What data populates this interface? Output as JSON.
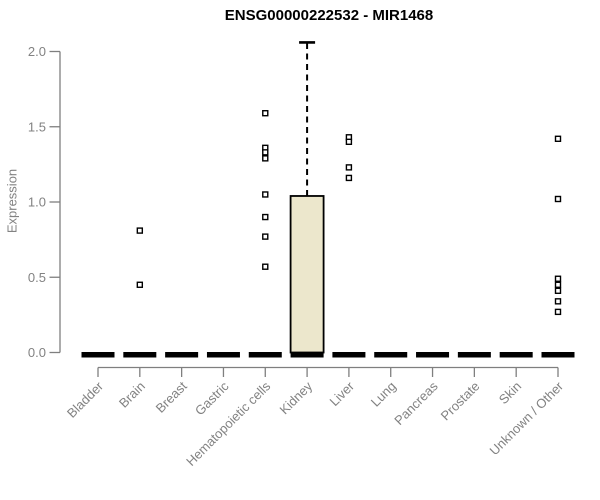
{
  "chart_data": {
    "type": "boxplot",
    "title": "ENSG00000222532 - MIR1468",
    "ylabel": "Expression",
    "xlabel": "",
    "ylim": [
      0,
      2.06
    ],
    "yticks": [
      0.0,
      0.5,
      1.0,
      1.5,
      2.0
    ],
    "ytick_labels": [
      "0.0",
      "0.5",
      "1.0",
      "1.5",
      "2.0"
    ],
    "grid": "off",
    "legend": "none",
    "categories": [
      "Bladder",
      "Brain",
      "Breast",
      "Gastric",
      "Hematopoietic cells",
      "Kidney",
      "Liver",
      "Lung",
      "Pancreas",
      "Prostate",
      "Skin",
      "Unknown / Other"
    ],
    "boxes": [
      {
        "category": "Bladder",
        "median": 0,
        "q1": 0,
        "q3": 0,
        "whisker_low": 0,
        "whisker_high": 0,
        "outliers": []
      },
      {
        "category": "Brain",
        "median": 0,
        "q1": 0,
        "q3": 0,
        "whisker_low": 0,
        "whisker_high": 0,
        "outliers": [
          0.81,
          0.45
        ]
      },
      {
        "category": "Breast",
        "median": 0,
        "q1": 0,
        "q3": 0,
        "whisker_low": 0,
        "whisker_high": 0,
        "outliers": []
      },
      {
        "category": "Gastric",
        "median": 0,
        "q1": 0,
        "q3": 0,
        "whisker_low": 0,
        "whisker_high": 0,
        "outliers": []
      },
      {
        "category": "Hematopoietic cells",
        "median": 0,
        "q1": 0,
        "q3": 0,
        "whisker_low": 0,
        "whisker_high": 0,
        "outliers": [
          1.59,
          1.36,
          1.33,
          1.29,
          1.05,
          0.9,
          0.77,
          0.57
        ]
      },
      {
        "category": "Kidney",
        "median": 0,
        "q1": 0,
        "q3": 1.04,
        "whisker_low": 0,
        "whisker_high": 2.06,
        "outliers": []
      },
      {
        "category": "Liver",
        "median": 0,
        "q1": 0,
        "q3": 0,
        "whisker_low": 0,
        "whisker_high": 0,
        "outliers": [
          1.43,
          1.4,
          1.23,
          1.16
        ]
      },
      {
        "category": "Lung",
        "median": 0,
        "q1": 0,
        "q3": 0,
        "whisker_low": 0,
        "whisker_high": 0,
        "outliers": []
      },
      {
        "category": "Pancreas",
        "median": 0,
        "q1": 0,
        "q3": 0,
        "whisker_low": 0,
        "whisker_high": 0,
        "outliers": []
      },
      {
        "category": "Prostate",
        "median": 0,
        "q1": 0,
        "q3": 0,
        "whisker_low": 0,
        "whisker_high": 0,
        "outliers": []
      },
      {
        "category": "Skin",
        "median": 0,
        "q1": 0,
        "q3": 0,
        "whisker_low": 0,
        "whisker_high": 0,
        "outliers": []
      },
      {
        "category": "Unknown / Other",
        "median": 0,
        "q1": 0,
        "q3": 0,
        "whisker_low": 0,
        "whisker_high": 0,
        "outliers": [
          1.42,
          1.02,
          0.49,
          0.45,
          0.41,
          0.34,
          0.27
        ]
      }
    ],
    "colors": {
      "box_fill": "#ECE7CC",
      "box_border": "#000000",
      "median": "#000000",
      "whisker": "#000000",
      "outlier_border": "#000000",
      "outlier_fill": "#FFFFFF",
      "axis_line": "#7F7F7F",
      "tick_text": "#828282",
      "title_text": "#000000"
    }
  }
}
